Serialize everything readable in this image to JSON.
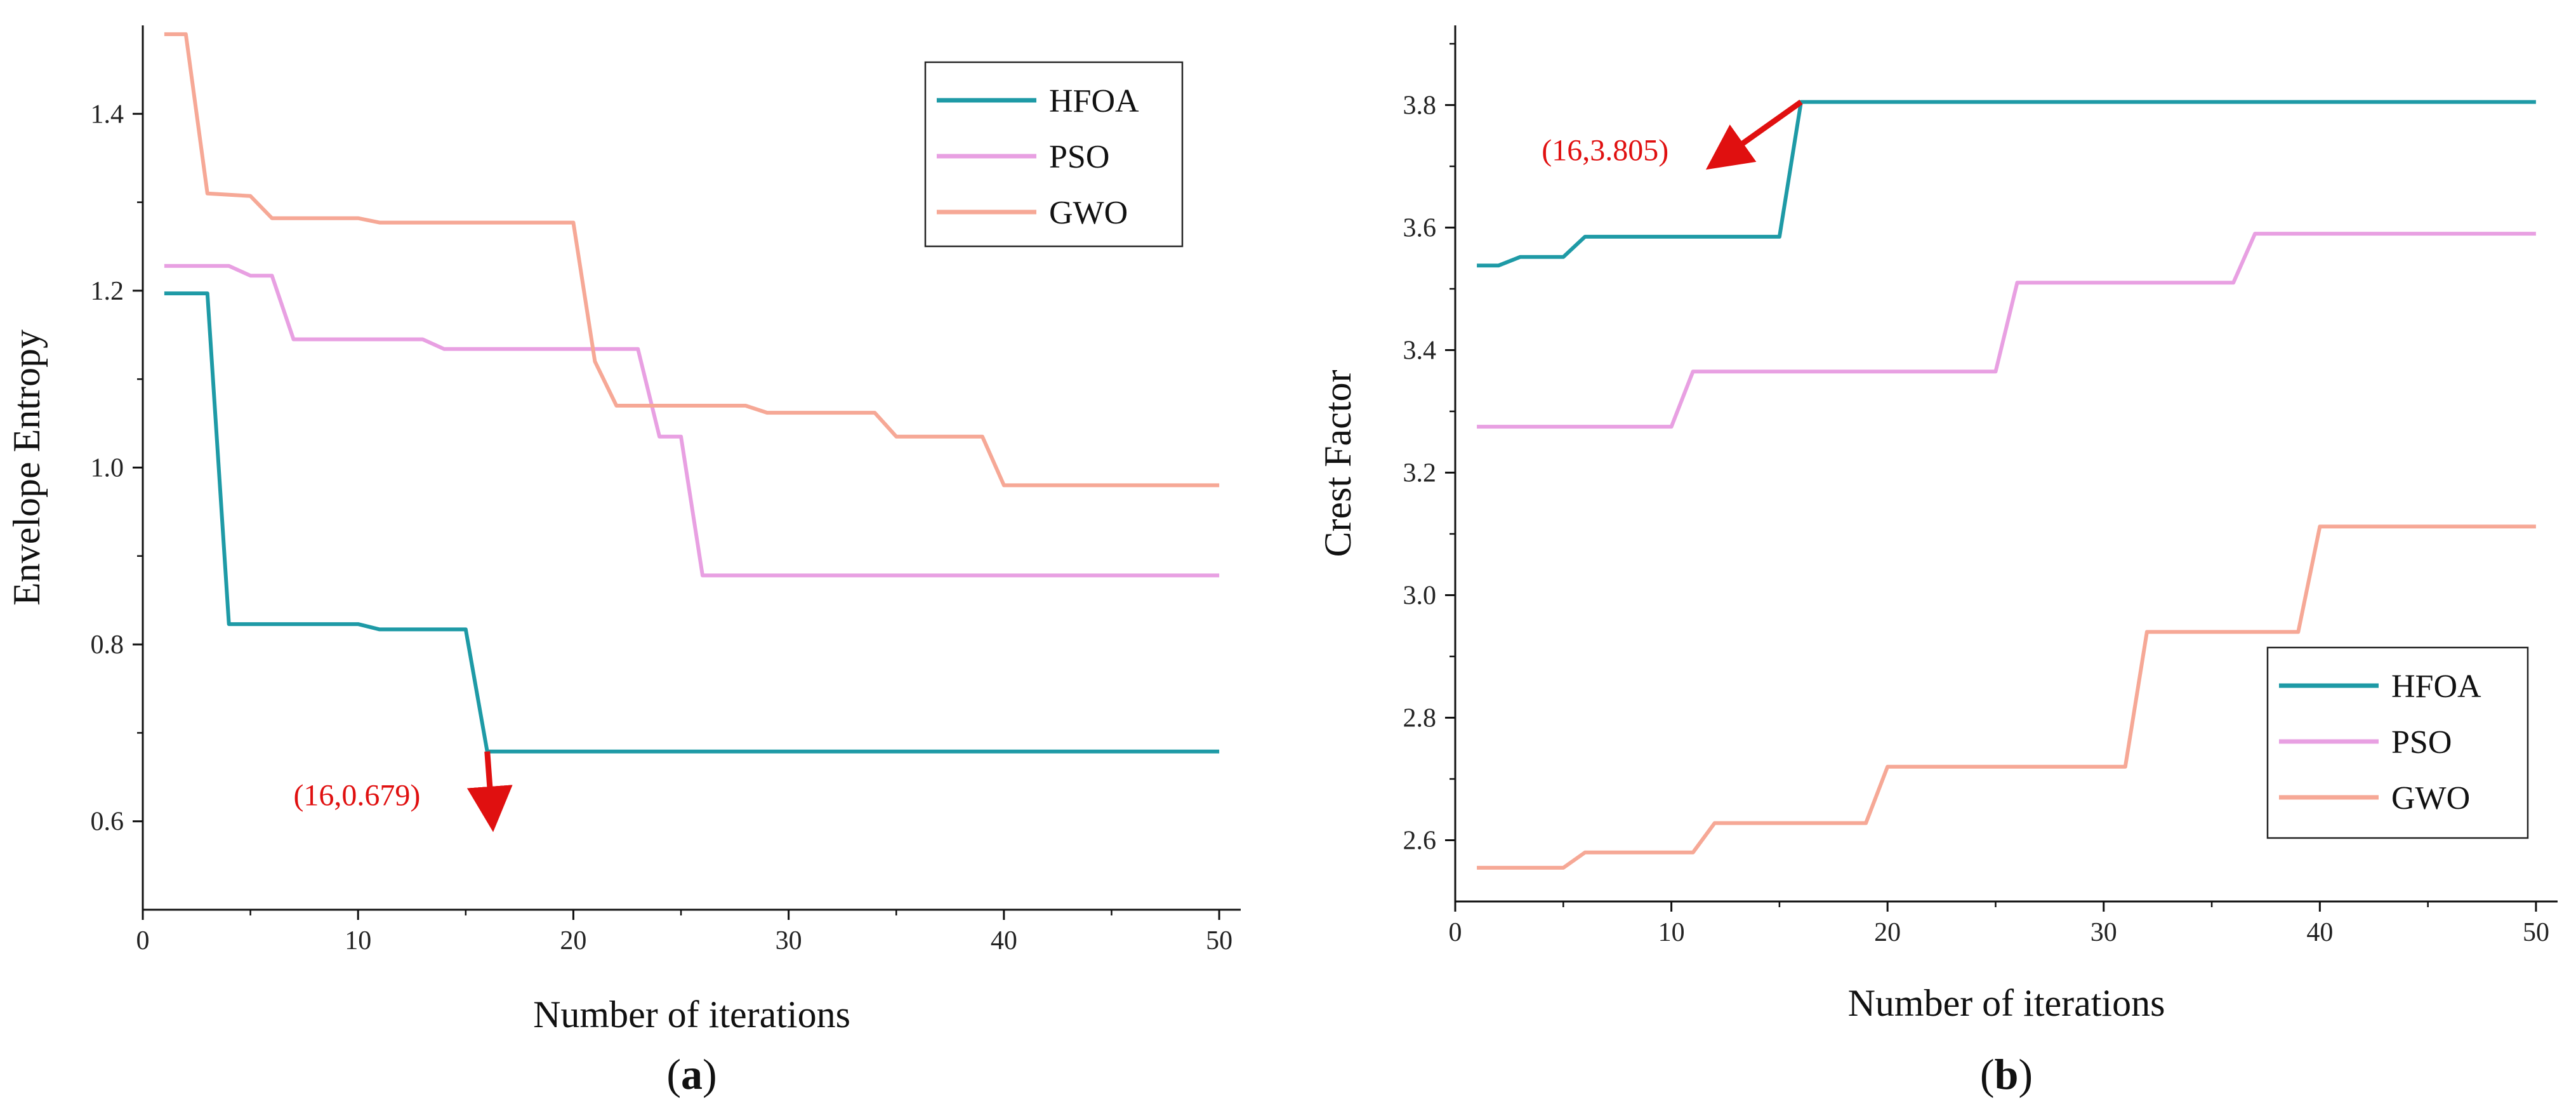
{
  "colors": {
    "HFOA": "#1e9aa6",
    "PSO": "#e8a0e2",
    "GWO": "#f6a896",
    "annotation": "#e01010",
    "axis": "#111111"
  },
  "chart_data": [
    {
      "type": "line",
      "panel_label": "a",
      "title": "",
      "xlabel": "Number of iterations",
      "ylabel": "Envelope Entropy",
      "xlim": [
        0,
        51
      ],
      "ylim": [
        0.5,
        1.5
      ],
      "xticks": [
        0,
        10,
        20,
        30,
        40,
        50
      ],
      "yticks": [
        0.6,
        0.8,
        1.0,
        1.2,
        1.4
      ],
      "ytick_labels": [
        "0.6",
        "0.8",
        "1.0",
        "1.2",
        "1.4"
      ],
      "legend": "top-right",
      "series": [
        {
          "name": "HFOA",
          "points": [
            [
              1,
              1.197
            ],
            [
              3,
              1.197
            ],
            [
              4,
              0.823
            ],
            [
              10,
              0.823
            ],
            [
              11,
              0.817
            ],
            [
              15,
              0.817
            ],
            [
              16,
              0.679
            ],
            [
              50,
              0.679
            ]
          ]
        },
        {
          "name": "PSO",
          "points": [
            [
              1,
              1.228
            ],
            [
              4,
              1.228
            ],
            [
              5,
              1.217
            ],
            [
              6,
              1.217
            ],
            [
              7,
              1.145
            ],
            [
              13,
              1.145
            ],
            [
              14,
              1.134
            ],
            [
              23,
              1.134
            ],
            [
              24,
              1.035
            ],
            [
              25,
              1.035
            ],
            [
              26,
              0.878
            ],
            [
              50,
              0.878
            ]
          ]
        },
        {
          "name": "GWO",
          "points": [
            [
              1,
              1.49
            ],
            [
              2,
              1.49
            ],
            [
              3,
              1.31
            ],
            [
              5,
              1.307
            ],
            [
              6,
              1.282
            ],
            [
              10,
              1.282
            ],
            [
              11,
              1.277
            ],
            [
              20,
              1.277
            ],
            [
              21,
              1.12
            ],
            [
              22,
              1.07
            ],
            [
              28,
              1.07
            ],
            [
              29,
              1.062
            ],
            [
              34,
              1.062
            ],
            [
              35,
              1.035
            ],
            [
              39,
              1.035
            ],
            [
              40,
              0.98
            ],
            [
              50,
              0.98
            ]
          ]
        }
      ],
      "annotation": {
        "text": "(16,0.679)",
        "x": 16,
        "y": 0.679,
        "text_x": 7,
        "text_y": 0.618
      }
    },
    {
      "type": "line",
      "panel_label": "b",
      "title": "",
      "xlabel": "Number of iterations",
      "ylabel": "Crest Factor",
      "xlim": [
        0,
        51
      ],
      "ylim": [
        2.5,
        3.93
      ],
      "xticks": [
        0,
        10,
        20,
        30,
        40,
        50
      ],
      "yticks": [
        2.6,
        2.8,
        3.0,
        3.2,
        3.4,
        3.6,
        3.8
      ],
      "ytick_labels": [
        "2.6",
        "2.8",
        "3.0",
        "3.2",
        "3.4",
        "3.6",
        "3.8"
      ],
      "legend": "bottom-right",
      "series": [
        {
          "name": "HFOA",
          "points": [
            [
              1,
              3.538
            ],
            [
              2,
              3.538
            ],
            [
              3,
              3.552
            ],
            [
              5,
              3.552
            ],
            [
              6,
              3.585
            ],
            [
              15,
              3.585
            ],
            [
              16,
              3.805
            ],
            [
              50,
              3.805
            ]
          ]
        },
        {
          "name": "PSO",
          "points": [
            [
              1,
              3.275
            ],
            [
              10,
              3.275
            ],
            [
              11,
              3.365
            ],
            [
              25,
              3.365
            ],
            [
              26,
              3.51
            ],
            [
              36,
              3.51
            ],
            [
              37,
              3.59
            ],
            [
              50,
              3.59
            ]
          ]
        },
        {
          "name": "GWO",
          "points": [
            [
              1,
              2.555
            ],
            [
              5,
              2.555
            ],
            [
              6,
              2.58
            ],
            [
              11,
              2.58
            ],
            [
              12,
              2.628
            ],
            [
              19,
              2.628
            ],
            [
              20,
              2.72
            ],
            [
              31,
              2.72
            ],
            [
              32,
              2.94
            ],
            [
              39,
              2.94
            ],
            [
              40,
              3.112
            ],
            [
              50,
              3.112
            ]
          ]
        }
      ],
      "annotation": {
        "text": "(16,3.805)",
        "x": 16,
        "y": 3.805,
        "text_x": 4,
        "text_y": 3.71
      }
    }
  ]
}
